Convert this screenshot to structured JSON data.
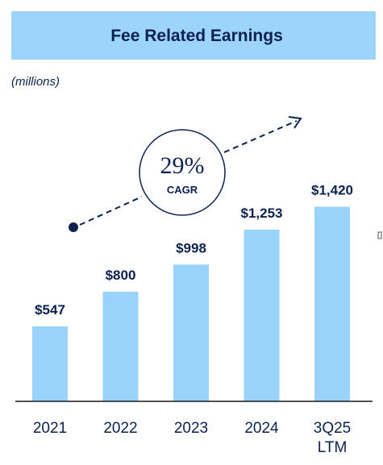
{
  "header": {
    "title": "Fee Related Earnings"
  },
  "units": "(millions)",
  "annotation": {
    "value": "29%",
    "label": "CAGR"
  },
  "colors": {
    "bar": "#99d3fb",
    "header_bg": "#9dd4fb",
    "text": "#0b2150",
    "axis": "#1a1a1a"
  },
  "chart_data": {
    "type": "bar",
    "title": "Fee Related Earnings",
    "ylabel": "(millions)",
    "categories": [
      "2021",
      "2022",
      "2023",
      "2024",
      "3Q25 LTM"
    ],
    "category_lines": [
      [
        "2021"
      ],
      [
        "2022"
      ],
      [
        "2023"
      ],
      [
        "2024"
      ],
      [
        "3Q25",
        "LTM"
      ]
    ],
    "values": [
      547,
      800,
      998,
      1253,
      1420
    ],
    "data_labels": [
      "$547",
      "$800",
      "$998",
      "$1,253",
      "$1,420"
    ],
    "annotation": "29% CAGR",
    "grid": false,
    "legend": "none"
  }
}
